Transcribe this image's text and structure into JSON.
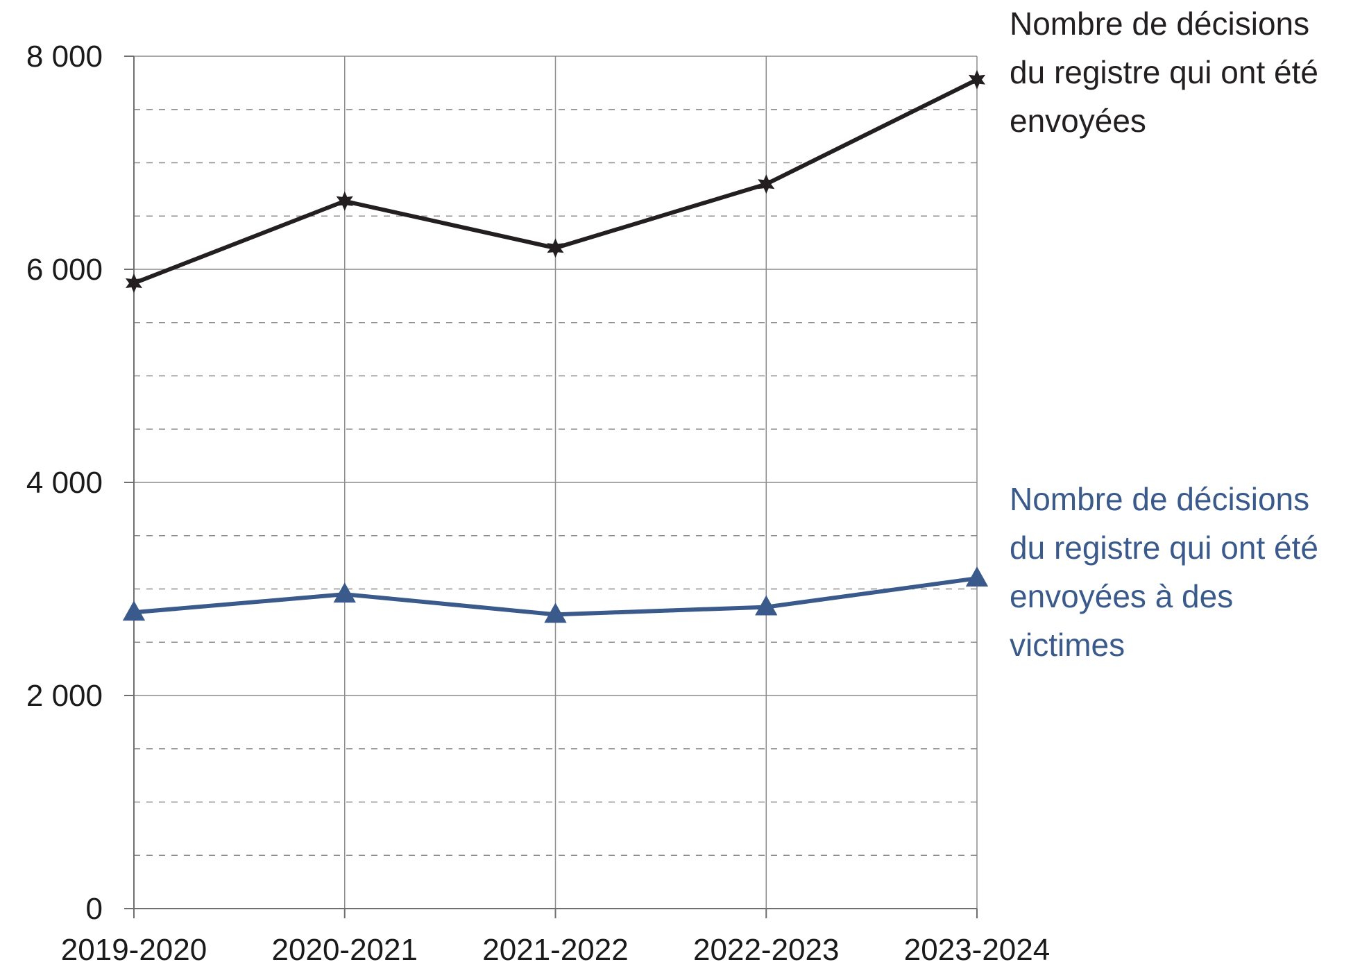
{
  "chart_data": {
    "type": "line",
    "title": "",
    "xlabel": "",
    "ylabel": "",
    "categories": [
      "2019-2020",
      "2020-2021",
      "2021-2022",
      "2022-2023",
      "2023-2024"
    ],
    "ylim": [
      0,
      8000
    ],
    "y_ticks": [
      {
        "value": 0,
        "label": "0"
      },
      {
        "value": 2000,
        "label": "2 000"
      },
      {
        "value": 4000,
        "label": "4 000"
      },
      {
        "value": 6000,
        "label": "6 000"
      },
      {
        "value": 8000,
        "label": "8 000"
      }
    ],
    "minor_gridline_step": 500,
    "grid": true,
    "legend": "direct labels at right of lines",
    "series": [
      {
        "name": "Nombre de décisions du registre qui ont été envoyées",
        "label_lines": [
          "Nombre de décisions",
          "du registre qui ont été",
          "envoyées"
        ],
        "values": [
          5870,
          6640,
          6200,
          6800,
          7780
        ],
        "color": "#231f20",
        "marker": "star"
      },
      {
        "name": "Nombre de décisions du registre qui ont été envoyées à des victimes",
        "label_lines": [
          "Nombre de décisions",
          "du registre qui ont été",
          "envoyées à des",
          "victimes"
        ],
        "values": [
          2780,
          2950,
          2760,
          2830,
          3100
        ],
        "color": "#3a5a8c",
        "marker": "triangle"
      }
    ]
  }
}
